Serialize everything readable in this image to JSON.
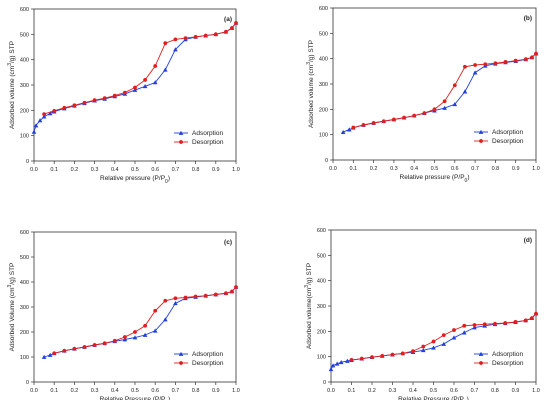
{
  "figure": {
    "colors": {
      "adsorption": "#1f3fe0",
      "desorption": "#e01e1e",
      "axis": "#333333"
    }
  },
  "chart_data": [
    {
      "type": "line",
      "panel_label": "(a)",
      "xlabel": "Relative pressure (P/P0)",
      "ylabel": "Adsorbed volume (cm3/g) STP",
      "xlim": [
        0,
        1
      ],
      "ylim": [
        0,
        600
      ],
      "xticks": [
        "0.0",
        "0.1",
        "0.2",
        "0.3",
        "0.4",
        "0.5",
        "0.6",
        "0.7",
        "0.8",
        "0.9",
        "1.0"
      ],
      "yticks": [
        "0",
        "100",
        "200",
        "300",
        "400",
        "500",
        "600"
      ],
      "grid": false,
      "legend_position": "bottom-right",
      "series": [
        {
          "name": "Adsorption",
          "marker": "triangle",
          "x": [
            0.0,
            0.01,
            0.03,
            0.05,
            0.08,
            0.1,
            0.15,
            0.2,
            0.25,
            0.3,
            0.35,
            0.4,
            0.45,
            0.5,
            0.55,
            0.6,
            0.65,
            0.7,
            0.75,
            0.8,
            0.85,
            0.9,
            0.95,
            0.98,
            1.0
          ],
          "y": [
            115,
            140,
            160,
            175,
            188,
            195,
            207,
            218,
            228,
            238,
            245,
            255,
            265,
            280,
            295,
            310,
            360,
            440,
            480,
            490,
            495,
            500,
            510,
            525,
            545
          ]
        },
        {
          "name": "Desorption",
          "marker": "circle",
          "x": [
            1.0,
            0.98,
            0.95,
            0.9,
            0.85,
            0.8,
            0.75,
            0.7,
            0.65,
            0.6,
            0.55,
            0.5,
            0.45,
            0.4,
            0.35,
            0.3,
            0.25,
            0.2,
            0.15,
            0.1,
            0.05
          ],
          "y": [
            545,
            525,
            510,
            500,
            495,
            490,
            485,
            480,
            465,
            375,
            320,
            290,
            270,
            258,
            248,
            240,
            230,
            220,
            210,
            198,
            185
          ]
        }
      ]
    },
    {
      "type": "line",
      "panel_label": "(b)",
      "xlabel": "Relative pressure (P/P0)",
      "ylabel": "Adsorbed volume (cm3/g) STP",
      "xlim": [
        0,
        1
      ],
      "ylim": [
        0,
        600
      ],
      "xticks": [
        "0.0",
        "0.1",
        "0.2",
        "0.3",
        "0.4",
        "0.5",
        "0.6",
        "0.7",
        "0.8",
        "0.9",
        "1.0"
      ],
      "yticks": [
        "0",
        "100",
        "200",
        "300",
        "400",
        "500",
        "600"
      ],
      "grid": false,
      "legend_position": "bottom-right",
      "series": [
        {
          "name": "Adsorption",
          "marker": "triangle",
          "x": [
            0.05,
            0.08,
            0.1,
            0.15,
            0.2,
            0.25,
            0.3,
            0.35,
            0.4,
            0.45,
            0.5,
            0.55,
            0.6,
            0.65,
            0.7,
            0.75,
            0.8,
            0.85,
            0.9,
            0.95,
            0.98,
            1.0
          ],
          "y": [
            110,
            120,
            127,
            138,
            146,
            153,
            160,
            167,
            175,
            185,
            195,
            205,
            220,
            270,
            345,
            372,
            380,
            385,
            390,
            397,
            405,
            420
          ]
        },
        {
          "name": "Desorption",
          "marker": "circle",
          "x": [
            1.0,
            0.98,
            0.95,
            0.9,
            0.85,
            0.8,
            0.75,
            0.7,
            0.65,
            0.6,
            0.55,
            0.5,
            0.45,
            0.4,
            0.35,
            0.3,
            0.25,
            0.2,
            0.15,
            0.1
          ],
          "y": [
            420,
            405,
            398,
            392,
            387,
            382,
            378,
            375,
            368,
            295,
            232,
            200,
            185,
            175,
            167,
            160,
            153,
            146,
            138,
            128
          ]
        }
      ]
    },
    {
      "type": "line",
      "panel_label": "(c)",
      "xlabel": "Relative Pressure (P/P0)",
      "ylabel": "Adsorbed Volume (cm3/g) STP",
      "xlim": [
        0,
        1
      ],
      "ylim": [
        0,
        600
      ],
      "xticks": [
        "0.0",
        "0.1",
        "0.2",
        "0.3",
        "0.4",
        "0.5",
        "0.6",
        "0.7",
        "0.8",
        "0.9",
        "1.0"
      ],
      "yticks": [
        "0",
        "100",
        "200",
        "300",
        "400",
        "500",
        "600"
      ],
      "grid": false,
      "legend_position": "bottom-right",
      "series": [
        {
          "name": "Adsorption",
          "marker": "triangle",
          "x": [
            0.05,
            0.08,
            0.1,
            0.15,
            0.2,
            0.25,
            0.3,
            0.35,
            0.4,
            0.45,
            0.5,
            0.55,
            0.6,
            0.65,
            0.7,
            0.75,
            0.8,
            0.85,
            0.9,
            0.95,
            0.98,
            1.0
          ],
          "y": [
            100,
            108,
            115,
            125,
            133,
            140,
            148,
            155,
            163,
            170,
            178,
            188,
            205,
            250,
            315,
            335,
            340,
            345,
            350,
            355,
            362,
            380
          ]
        },
        {
          "name": "Desorption",
          "marker": "circle",
          "x": [
            1.0,
            0.98,
            0.95,
            0.9,
            0.85,
            0.8,
            0.75,
            0.7,
            0.65,
            0.6,
            0.55,
            0.5,
            0.45,
            0.4,
            0.35,
            0.3,
            0.25,
            0.2,
            0.15,
            0.1
          ],
          "y": [
            380,
            362,
            355,
            350,
            345,
            342,
            338,
            335,
            325,
            285,
            225,
            200,
            180,
            165,
            155,
            148,
            140,
            133,
            125,
            115
          ]
        }
      ]
    },
    {
      "type": "line",
      "panel_label": "(d)",
      "xlabel": "Relative Pressure (P/P0)",
      "ylabel": "Adsorbed volume(cm3/g) STP",
      "xlim": [
        0,
        1
      ],
      "ylim": [
        0,
        600
      ],
      "xticks": [
        "0.0",
        "0.1",
        "0.2",
        "0.3",
        "0.4",
        "0.5",
        "0.6",
        "0.7",
        "0.8",
        "0.9",
        "1.0"
      ],
      "yticks": [
        "0",
        "100",
        "200",
        "300",
        "400",
        "500",
        "600"
      ],
      "grid": false,
      "legend_position": "bottom-right",
      "series": [
        {
          "name": "Adsorption",
          "marker": "triangle",
          "x": [
            0.0,
            0.01,
            0.03,
            0.05,
            0.08,
            0.1,
            0.15,
            0.2,
            0.25,
            0.3,
            0.35,
            0.4,
            0.45,
            0.5,
            0.55,
            0.6,
            0.65,
            0.7,
            0.75,
            0.8,
            0.85,
            0.9,
            0.95,
            0.98,
            1.0
          ],
          "y": [
            50,
            65,
            72,
            78,
            83,
            86,
            92,
            98,
            103,
            108,
            113,
            118,
            125,
            135,
            150,
            175,
            195,
            215,
            222,
            228,
            232,
            236,
            243,
            252,
            270
          ]
        },
        {
          "name": "Desorption",
          "marker": "circle",
          "x": [
            1.0,
            0.98,
            0.95,
            0.9,
            0.85,
            0.8,
            0.75,
            0.7,
            0.65,
            0.6,
            0.55,
            0.5,
            0.45,
            0.4,
            0.35,
            0.3,
            0.25,
            0.2,
            0.15,
            0.1
          ],
          "y": [
            270,
            252,
            243,
            237,
            233,
            230,
            228,
            225,
            222,
            205,
            185,
            160,
            140,
            122,
            113,
            108,
            103,
            98,
            92,
            87
          ]
        }
      ]
    }
  ]
}
